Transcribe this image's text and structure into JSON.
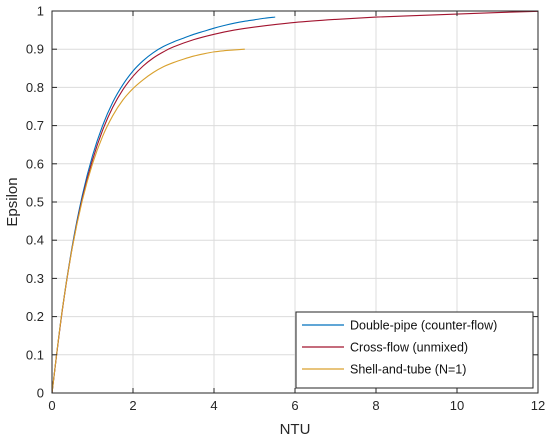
{
  "chart_data": {
    "type": "line",
    "title": "",
    "xlabel": "NTU",
    "ylabel": "Epsilon",
    "xlim": [
      0,
      12
    ],
    "ylim": [
      0,
      1
    ],
    "xticks": [
      0,
      2,
      4,
      6,
      8,
      10,
      12
    ],
    "yticks": [
      0,
      0.1,
      0.2,
      0.3,
      0.4,
      0.5,
      0.6,
      0.7,
      0.8,
      0.9,
      1
    ],
    "ytick_labels": [
      "0",
      "0.1",
      "0.2",
      "0.3",
      "0.4",
      "0.5",
      "0.6",
      "0.7",
      "0.8",
      "0.9",
      "1"
    ],
    "xtick_labels": [
      "0",
      "2",
      "4",
      "6",
      "8",
      "10",
      "12"
    ],
    "grid": true,
    "legend_position": "bottom-right",
    "series": [
      {
        "name": "Double-pipe (counter-flow)",
        "color": "#0072BD",
        "x": [
          0,
          0.25,
          0.5,
          0.75,
          1,
          1.25,
          1.5,
          1.75,
          2,
          2.25,
          2.5,
          2.75,
          3,
          3.25,
          3.5,
          3.75,
          4,
          4.25,
          4.5,
          4.75,
          5,
          5.25,
          5.5
        ],
        "y": [
          0,
          0.215,
          0.385,
          0.518,
          0.621,
          0.7,
          0.761,
          0.807,
          0.843,
          0.87,
          0.891,
          0.907,
          0.919,
          0.929,
          0.939,
          0.947,
          0.955,
          0.962,
          0.968,
          0.973,
          0.977,
          0.981,
          0.984
        ]
      },
      {
        "name": "Cross-flow (unmixed)",
        "color": "#A2142F",
        "x": [
          0,
          0.25,
          0.5,
          0.75,
          1,
          1.25,
          1.5,
          1.75,
          2,
          2.25,
          2.5,
          2.75,
          3,
          3.5,
          4,
          4.5,
          5,
          6,
          7,
          8,
          9,
          10,
          11,
          12
        ],
        "y": [
          0,
          0.213,
          0.381,
          0.51,
          0.61,
          0.688,
          0.748,
          0.794,
          0.829,
          0.856,
          0.877,
          0.893,
          0.906,
          0.925,
          0.939,
          0.95,
          0.958,
          0.97,
          0.978,
          0.984,
          0.988,
          0.992,
          0.996,
          0.999
        ]
      },
      {
        "name": "Shell-and-tube (N=1)",
        "color": "#D9A12E",
        "x": [
          0,
          0.25,
          0.5,
          0.75,
          1,
          1.25,
          1.5,
          1.75,
          2,
          2.25,
          2.5,
          2.75,
          3,
          3.25,
          3.5,
          3.75,
          4,
          4.25,
          4.5,
          4.75
        ],
        "y": [
          0,
          0.215,
          0.38,
          0.505,
          0.6,
          0.672,
          0.726,
          0.767,
          0.797,
          0.82,
          0.839,
          0.854,
          0.865,
          0.874,
          0.882,
          0.888,
          0.893,
          0.896,
          0.898,
          0.9
        ]
      }
    ]
  }
}
